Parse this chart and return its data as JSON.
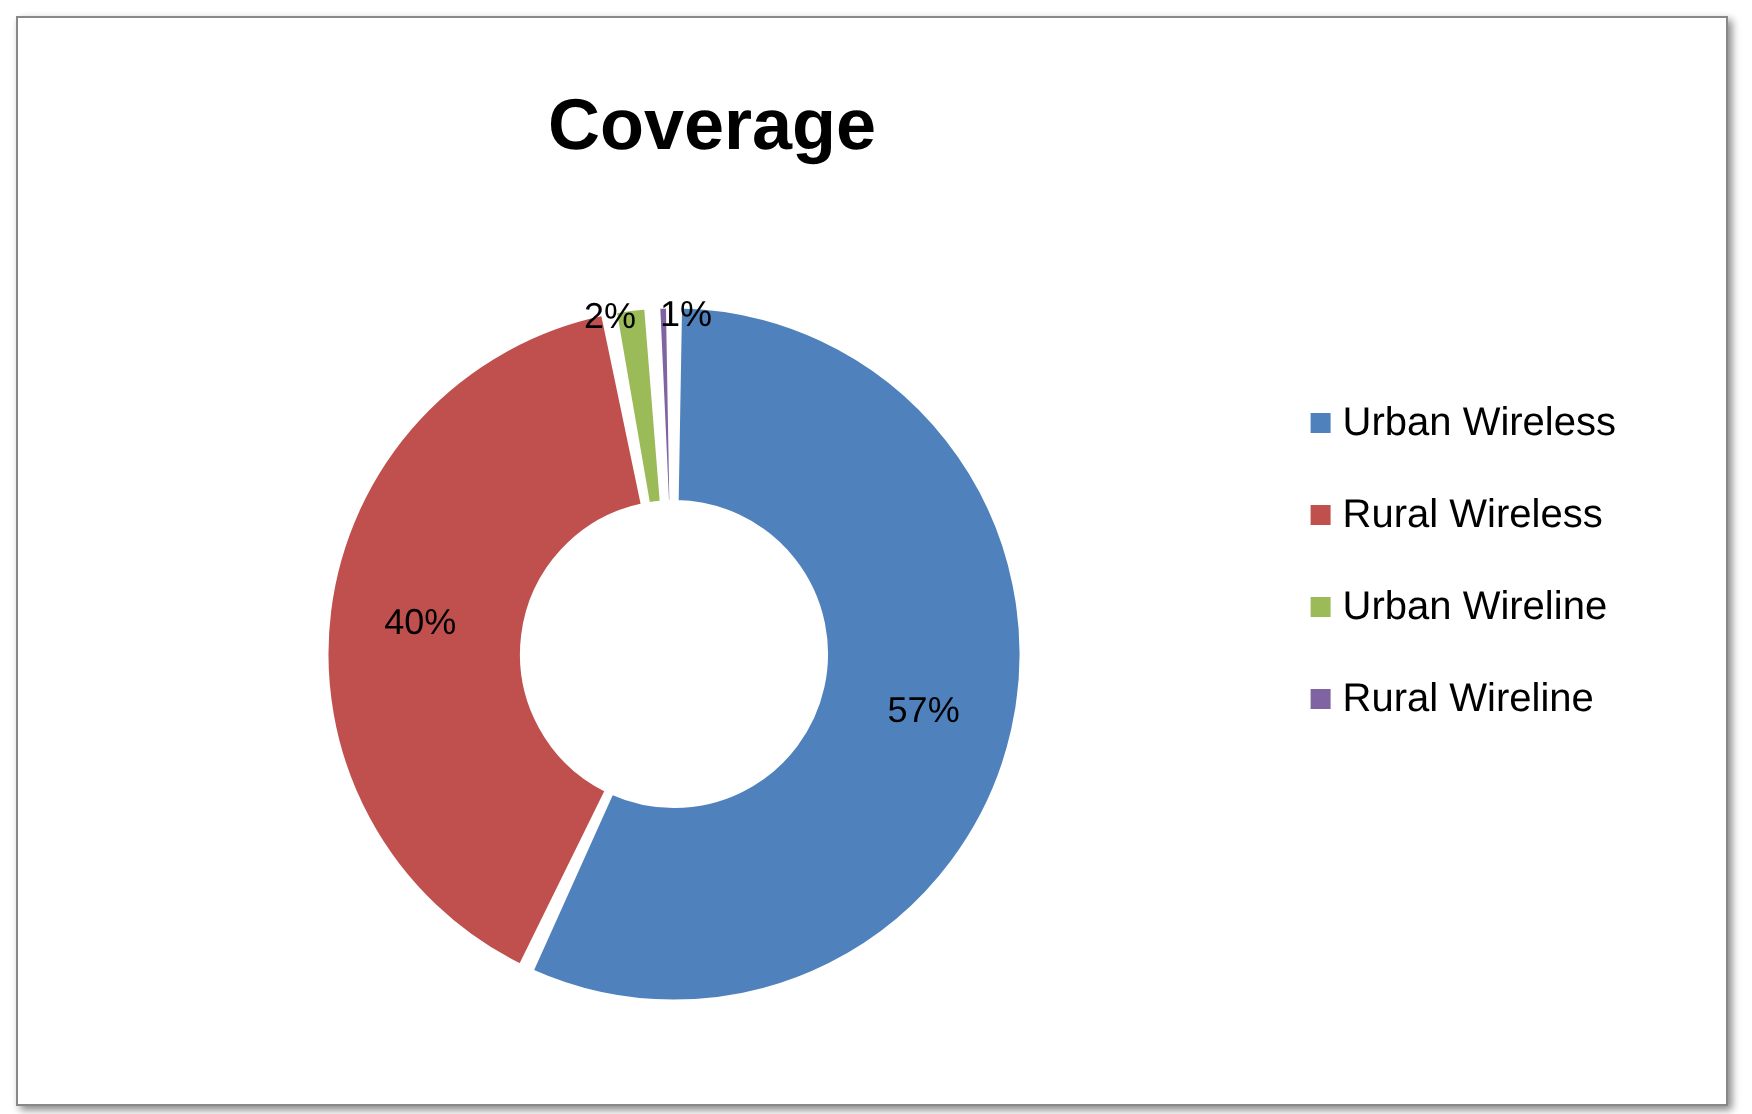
{
  "chart_data": {
    "type": "donut",
    "title": "Coverage",
    "categories": [
      "Urban Wireless",
      "Rural Wireless",
      "Urban Wireline",
      "Rural Wireline"
    ],
    "values": [
      57,
      40,
      2,
      1
    ],
    "colors": [
      "#4f81bd",
      "#c0504d",
      "#9bbb59",
      "#8064a2"
    ],
    "value_labels": [
      "57%",
      "40%",
      "2%",
      "1%"
    ],
    "legend": "right"
  }
}
